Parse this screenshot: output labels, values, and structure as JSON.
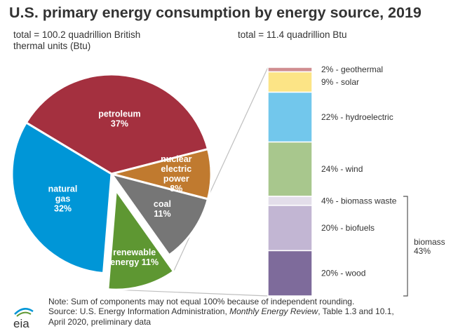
{
  "chart_data": [
    {
      "type": "pie",
      "title": "U.S. primary energy consumption by energy source, 2019",
      "total_label": "total = 100.2 quadrillion British thermal units (Btu)",
      "slices": [
        {
          "name": "petroleum",
          "value": 37,
          "label_lines": [
            "petroleum",
            "37%"
          ],
          "color": "#A4303F"
        },
        {
          "name": "nuclear electric power",
          "value": 8,
          "label_lines": [
            "nuclear",
            "electric",
            "power",
            "8%"
          ],
          "color": "#C07A2F"
        },
        {
          "name": "coal",
          "value": 11,
          "label_lines": [
            "coal",
            "11%"
          ],
          "color": "#767676"
        },
        {
          "name": "renewable energy",
          "value": 11,
          "label_lines": [
            "renewable",
            "energy 11%"
          ],
          "color": "#5E9732",
          "exploded": true
        },
        {
          "name": "natural gas",
          "value": 32,
          "label_lines": [
            "natural",
            "gas",
            "32%"
          ],
          "color": "#0096D7"
        }
      ]
    },
    {
      "type": "bar",
      "stacked": true,
      "total_label": "total = 11.4 quadrillion Btu",
      "segments": [
        {
          "name": "geothermal",
          "value": 2,
          "label": "2% - geothermal",
          "color": "#D08E91"
        },
        {
          "name": "solar",
          "value": 9,
          "label": "9% - solar",
          "color": "#FCE486"
        },
        {
          "name": "hydroelectric",
          "value": 22,
          "label": "22% - hydroelectric",
          "color": "#72C7EC"
        },
        {
          "name": "wind",
          "value": 24,
          "label": "24% - wind",
          "color": "#A8C78D"
        },
        {
          "name": "biomass waste",
          "value": 4,
          "label": "4% - biomass waste",
          "color": "#E3DEEA"
        },
        {
          "name": "biofuels",
          "value": 20,
          "label": "20% - biofuels",
          "color": "#C2B6D3"
        },
        {
          "name": "wood",
          "value": 20,
          "label": "20% - wood",
          "color": "#7E6B9B"
        }
      ],
      "group": {
        "label_lines": [
          "biomass",
          "43%"
        ],
        "members": [
          "biomass waste",
          "biofuels",
          "wood"
        ]
      }
    }
  ],
  "header": {
    "title": "U.S. primary energy consumption by energy source, 2019",
    "total_left": "total = 100.2 quadrillion British thermal units (Btu)",
    "total_right": "total = 11.4 quadrillion Btu"
  },
  "footer": {
    "note": "Note: Sum of components may not equal 100% because of independent rounding.",
    "source_prefix": "Source: U.S. Energy Information Administration, ",
    "source_title": "Monthly Energy Review",
    "source_suffix": ", Table 1.3 and 10.1,",
    "source_line2": "April 2020, preliminary data",
    "logo_text": "eia"
  },
  "colors": {
    "text": "#333333",
    "connector": "#BFBFBF",
    "logo_blue": "#0096D7",
    "logo_green": "#5E9732"
  }
}
